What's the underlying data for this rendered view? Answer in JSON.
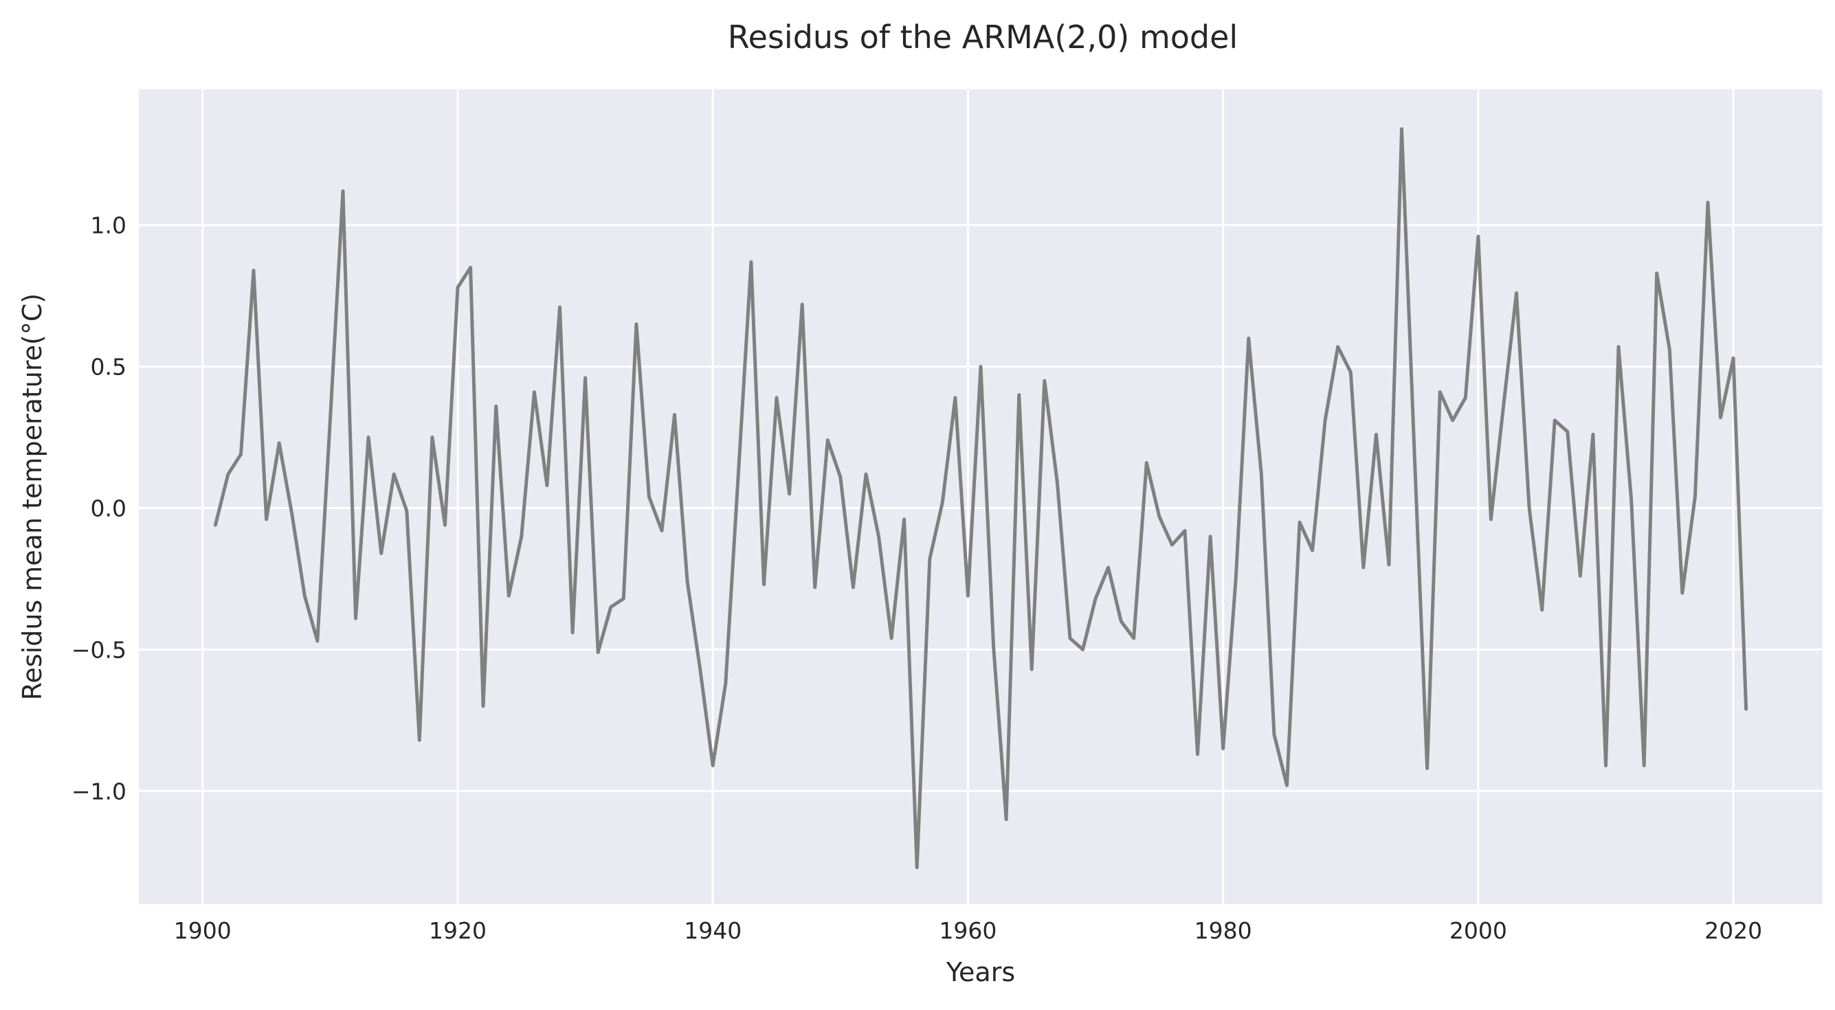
{
  "chart_data": {
    "type": "line",
    "title": "Residus of the ARMA(2,0) model",
    "xlabel": "Years",
    "ylabel": "Residus mean temperature(°C)",
    "xlim": [
      1895,
      2027
    ],
    "ylim": [
      -1.4,
      1.48
    ],
    "xticks": [
      1900,
      1920,
      1940,
      1960,
      1980,
      2000,
      2020
    ],
    "yticks": [
      -1.0,
      -0.5,
      0.0,
      0.5,
      1.0
    ],
    "xtick_labels": [
      "1900",
      "1920",
      "1940",
      "1960",
      "1980",
      "2000",
      "2020"
    ],
    "ytick_labels": [
      "−1.0",
      "−0.5",
      "0.0",
      "0.5",
      "1.0"
    ],
    "grid": true,
    "colors": {
      "background": "#eaeaf2",
      "line": "#808080",
      "grid": "#ffffff"
    },
    "series": [
      {
        "x": [
          1901,
          1902,
          1903,
          1904,
          1905,
          1906,
          1907,
          1908,
          1909,
          1910,
          1911,
          1912,
          1913,
          1914,
          1915,
          1916,
          1917,
          1918,
          1919,
          1920,
          1921,
          1922,
          1923,
          1924,
          1925,
          1926,
          1927,
          1928,
          1929,
          1930,
          1931,
          1932,
          1933,
          1934,
          1935,
          1936,
          1937,
          1938,
          1939,
          1940,
          1941,
          1942,
          1943,
          1944,
          1945,
          1946,
          1947,
          1948,
          1949,
          1950,
          1951,
          1952,
          1953,
          1954,
          1955,
          1956,
          1957,
          1958,
          1959,
          1960,
          1961,
          1962,
          1963,
          1964,
          1965,
          1966,
          1967,
          1968,
          1969,
          1970,
          1971,
          1972,
          1973,
          1974,
          1975,
          1976,
          1977,
          1978,
          1979,
          1980,
          1981,
          1982,
          1983,
          1984,
          1985,
          1986,
          1987,
          1988,
          1989,
          1990,
          1991,
          1992,
          1993,
          1994,
          1995,
          1996,
          1997,
          1998,
          1999,
          2000,
          2001,
          2002,
          2003,
          2004,
          2005,
          2006,
          2007,
          2008,
          2009,
          2010,
          2011,
          2012,
          2013,
          2014,
          2015,
          2016,
          2017,
          2018,
          2019,
          2020,
          2021
        ],
        "y": [
          -0.06,
          0.12,
          0.19,
          0.84,
          -0.04,
          0.23,
          -0.02,
          -0.31,
          -0.47,
          0.31,
          1.12,
          -0.39,
          0.25,
          -0.16,
          0.12,
          -0.01,
          -0.82,
          0.25,
          -0.06,
          0.78,
          0.85,
          -0.7,
          0.36,
          -0.31,
          -0.1,
          0.41,
          0.08,
          0.71,
          -0.44,
          0.46,
          -0.51,
          -0.35,
          -0.32,
          0.65,
          0.04,
          -0.08,
          0.33,
          -0.26,
          -0.57,
          -0.91,
          -0.62,
          0.12,
          0.87,
          -0.27,
          0.39,
          0.05,
          0.72,
          -0.28,
          0.24,
          0.11,
          -0.28,
          0.12,
          -0.1,
          -0.46,
          -0.04,
          -1.27,
          -0.18,
          0.02,
          0.39,
          -0.31,
          0.5,
          -0.49,
          -1.1,
          0.4,
          -0.57,
          0.45,
          0.09,
          -0.46,
          -0.5,
          -0.32,
          -0.21,
          -0.4,
          -0.46,
          0.16,
          -0.03,
          -0.13,
          -0.08,
          -0.87,
          -0.1,
          -0.85,
          -0.25,
          0.6,
          0.12,
          -0.8,
          -0.98,
          -0.05,
          -0.15,
          0.31,
          0.57,
          0.48,
          -0.21,
          0.26,
          -0.2,
          1.34,
          0.19,
          -0.92,
          0.41,
          0.31,
          0.39,
          0.96,
          -0.04,
          0.37,
          0.76,
          0.0,
          -0.36,
          0.31,
          0.27,
          -0.24,
          0.26,
          -0.91,
          0.57,
          0.03,
          -0.91,
          0.83,
          0.56,
          -0.3,
          0.04,
          1.08,
          0.32,
          0.53,
          -0.71
        ]
      }
    ]
  }
}
